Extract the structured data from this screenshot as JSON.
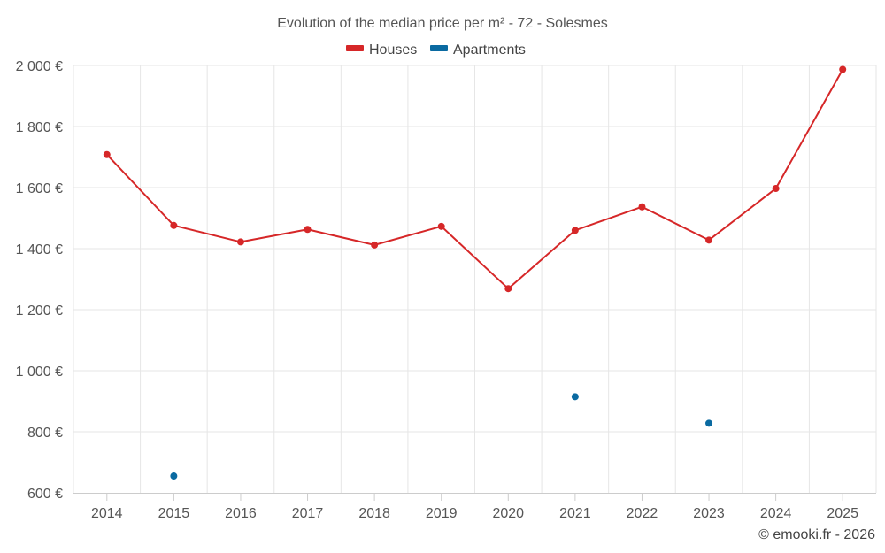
{
  "chart_data": {
    "type": "line",
    "title": "Evolution of the median price per m² - 72 - Solesmes",
    "categories": [
      "2014",
      "2015",
      "2016",
      "2017",
      "2018",
      "2019",
      "2020",
      "2021",
      "2022",
      "2023",
      "2024",
      "2025"
    ],
    "y_ticks": [
      "600 €",
      "800 €",
      "1 000 €",
      "1 200 €",
      "1 400 €",
      "1 600 €",
      "1 800 €",
      "2 000 €"
    ],
    "ylim": [
      600,
      2000
    ],
    "legend_position": "top-center",
    "series": [
      {
        "name": "Houses",
        "color": "#d62728",
        "values": [
          1708,
          1476,
          1422,
          1463,
          1412,
          1473,
          1269,
          1460,
          1537,
          1428,
          1597,
          1987
        ]
      },
      {
        "name": "Apartments",
        "color": "#0a6aa1",
        "values": [
          null,
          655,
          null,
          null,
          null,
          null,
          null,
          915,
          null,
          828,
          null,
          null
        ]
      }
    ],
    "credit": "© emooki.fr - 2026"
  }
}
